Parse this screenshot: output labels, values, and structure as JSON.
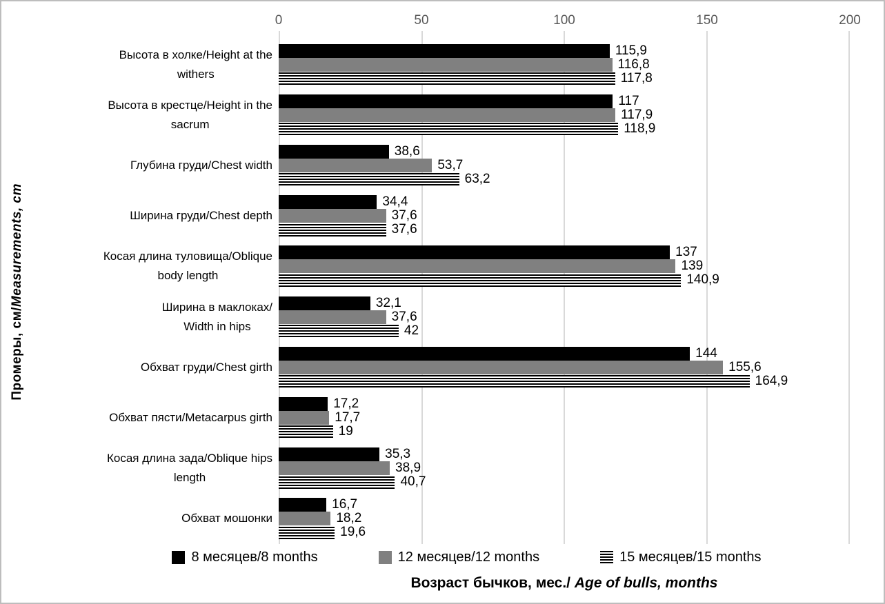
{
  "chart_data": {
    "type": "bar",
    "orientation": "horizontal",
    "title": "",
    "xlabel": {
      "ru": "Возраст бычков,  мес./ ",
      "en": "Age of bulls, months"
    },
    "ylabel": {
      "ru": "Промеры, см/",
      "en": "Measurements,  cm"
    },
    "xlim": [
      0,
      200
    ],
    "xticks": [
      0,
      50,
      100,
      150,
      200
    ],
    "xtick_labels": [
      "0",
      "50",
      "100",
      "150",
      "200"
    ],
    "grid": "vertical-major",
    "gridline_color": "#d9d9d9",
    "axis_text_color": "#595959",
    "legend_position": "bottom",
    "categories": [
      "Высота в холке/Height at the\nwithers",
      "Высота в крестце/Height in the\nsacrum",
      "Глубина груди/Chest width",
      "Ширина груди/Chest  depth",
      "Косая длина туловища/Oblique\nbody length",
      "Ширина в маклоках/\nWidth in hips",
      "Обхват груди/Chest girth",
      "Обхват пясти/Metacarpus girth",
      "Косая длина зада/Oblique hips\nlength",
      "Обхват мошонки"
    ],
    "series": [
      {
        "name": "8 месяцев/8 months",
        "color": "#000000",
        "pattern": "solid",
        "values": [
          115.9,
          117,
          38.6,
          34.4,
          137,
          32.1,
          144,
          17.2,
          35.3,
          16.7
        ],
        "labels": [
          "115,9",
          "117",
          "38,6",
          "34,4",
          "137",
          "32,1",
          "144",
          "17,2",
          "35,3",
          "16,7"
        ]
      },
      {
        "name": "12 месяцев/12 months",
        "color": "#808080",
        "pattern": "solid",
        "values": [
          116.8,
          117.9,
          53.7,
          37.6,
          139,
          37.6,
          155.6,
          17.7,
          38.9,
          18.2
        ],
        "labels": [
          "116,8",
          "117,9",
          "53,7",
          "37,6",
          "139",
          "37,6",
          "155,6",
          "17,7",
          "38,9",
          "18,2"
        ]
      },
      {
        "name": "15 месяцев/15 months",
        "color": "#000000",
        "pattern": "horizontal-stripes",
        "values": [
          117.8,
          118.9,
          63.2,
          37.6,
          140.9,
          42,
          164.9,
          19,
          40.7,
          19.6
        ],
        "labels": [
          "117,8",
          "118,9",
          "63,2",
          "37,6",
          "140,9",
          "42",
          "164,9",
          "19",
          "40,7",
          "19,6"
        ]
      }
    ]
  }
}
